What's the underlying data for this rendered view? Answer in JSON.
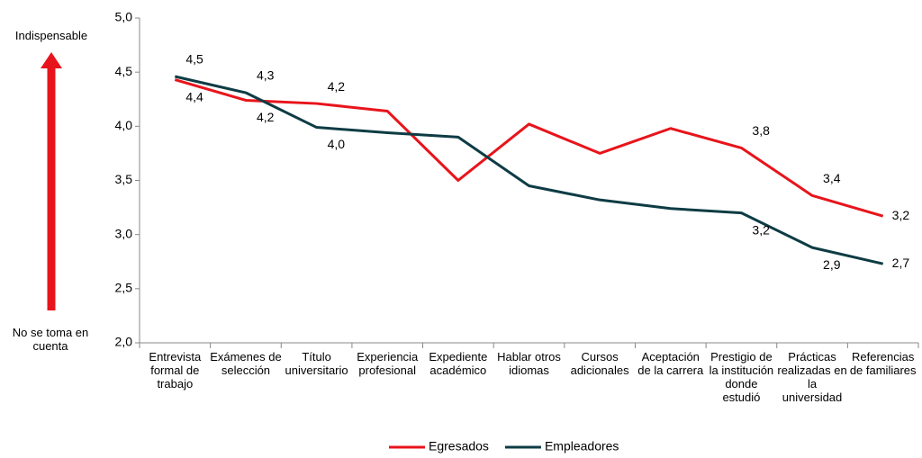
{
  "chart_data": {
    "type": "line",
    "annotations": [
      "Indispensable",
      "No se toma en cuenta"
    ],
    "categories": [
      "Entrevista formal de trabajo",
      "Exámenes de selección",
      "Título universitario",
      "Experiencia profesional",
      "Expediente académico",
      "Hablar otros idiomas",
      "Cursos adicionales",
      "Aceptación de la carrera",
      "Prestigio de la institución donde estudió",
      "Prácticas realizadas en la universidad",
      "Referencias de familiares"
    ],
    "series": [
      {
        "name": "Egresados",
        "color": "#e8141b",
        "values": [
          4.43,
          4.24,
          4.21,
          4.14,
          3.5,
          4.02,
          3.75,
          3.98,
          3.8,
          3.36,
          3.17
        ],
        "value_labels": [
          "4,4",
          "4,2",
          "4,2",
          null,
          null,
          null,
          null,
          null,
          "3,8",
          "3,4",
          "3,2"
        ]
      },
      {
        "name": "Empleadores",
        "color": "#0e3c44",
        "values": [
          4.46,
          4.31,
          3.99,
          3.94,
          3.9,
          3.45,
          3.32,
          3.24,
          3.2,
          2.88,
          2.73
        ],
        "value_labels": [
          "4,5",
          "4,3",
          "4,0",
          null,
          null,
          null,
          null,
          null,
          "3,2",
          "2,9",
          "2,7"
        ]
      }
    ],
    "ylim": [
      2.0,
      5.0
    ],
    "yticks": [
      {
        "value": 2.0,
        "label": "2,0"
      },
      {
        "value": 2.5,
        "label": "2,5"
      },
      {
        "value": 3.0,
        "label": "3,0"
      },
      {
        "value": 3.5,
        "label": "3,5"
      },
      {
        "value": 4.0,
        "label": "4,0"
      },
      {
        "value": 4.5,
        "label": "4,5"
      },
      {
        "value": 5.0,
        "label": "5,0"
      }
    ],
    "legend": "bottom"
  }
}
